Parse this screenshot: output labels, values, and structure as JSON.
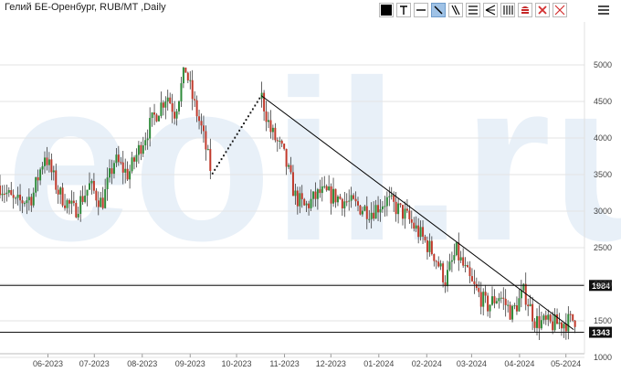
{
  "header": {
    "title": "Гелий БЕ-Оренбург, RUB/MT ,Daily"
  },
  "toolbar": {
    "tools": [
      {
        "name": "color-swatch-tool",
        "icon": "filled-square"
      },
      {
        "name": "text-tool",
        "icon": "T"
      },
      {
        "name": "horizontal-line-tool",
        "icon": "horizontal-line"
      },
      {
        "name": "trend-line-tool",
        "icon": "diagonal-line",
        "active": true
      },
      {
        "name": "ray-tool",
        "icon": "double-diagonal"
      },
      {
        "name": "channel-tool",
        "icon": "parallel-lines"
      },
      {
        "name": "fan-tool",
        "icon": "fan-lines"
      },
      {
        "name": "cycle-lines-tool",
        "icon": "vertical-bars"
      },
      {
        "name": "red-fill-tool",
        "icon": "red-stack"
      },
      {
        "name": "delete-tool",
        "icon": "red-x"
      },
      {
        "name": "delete-all-tool",
        "icon": "red-x-outline"
      }
    ],
    "menu_icon": "hamburger-icon"
  },
  "watermark": {
    "text": "eoil.ru",
    "color": "#e6eef7"
  },
  "colors": {
    "up": "#2e8b3a",
    "down": "#c0392b",
    "line": "#000000",
    "grid": "#e3e3e3"
  },
  "chart_data": {
    "type": "candlestick",
    "title": "Гелий БЕ-Оренбург, RUB/MT ,Daily",
    "x_labels": [
      "06-2023",
      "07-2023",
      "08-2023",
      "09-2023",
      "10-2023",
      "11-2023",
      "12-2023",
      "01-2024",
      "02-2024",
      "03-2024",
      "04-2024",
      "05-2024"
    ],
    "y_ticks": [
      1000,
      1500,
      2000,
      2500,
      3000,
      3500,
      4000,
      4500,
      5000
    ],
    "ylim": [
      950,
      5250
    ],
    "grid": true,
    "horizontal_levels": [
      {
        "value": 1984,
        "label": "1984"
      },
      {
        "value": 1343,
        "label": "1343"
      }
    ],
    "trend_line": {
      "from": {
        "date": "2023-10-31",
        "value": 4580
      },
      "to": {
        "date": "2024-05-20",
        "value": 1380
      }
    },
    "price_anchors": [
      [
        "2023-05-15",
        3350
      ],
      [
        "2023-05-25",
        3100
      ],
      [
        "2023-06-05",
        3200
      ],
      [
        "2023-06-13",
        3780
      ],
      [
        "2023-06-22",
        3250
      ],
      [
        "2023-07-02",
        3000
      ],
      [
        "2023-07-12",
        3350
      ],
      [
        "2023-07-20",
        3100
      ],
      [
        "2023-07-28",
        3700
      ],
      [
        "2023-08-06",
        3500
      ],
      [
        "2023-08-15",
        3950
      ],
      [
        "2023-08-23",
        4300
      ],
      [
        "2023-08-31",
        4600
      ],
      [
        "2023-09-05",
        4350
      ],
      [
        "2023-09-12",
        4950
      ],
      [
        "2023-09-17",
        4500
      ],
      [
        "2023-09-22",
        4150
      ],
      [
        "2023-09-29",
        3500
      ],
      [
        "2023-10-31",
        4580
      ],
      [
        "2023-11-06",
        4100
      ],
      [
        "2023-11-14",
        3800
      ],
      [
        "2023-11-22",
        3200
      ],
      [
        "2023-11-28",
        3050
      ],
      [
        "2023-12-08",
        3250
      ],
      [
        "2023-12-18",
        3200
      ],
      [
        "2023-12-28",
        3100
      ],
      [
        "2024-01-10",
        3000
      ],
      [
        "2024-01-20",
        3150
      ],
      [
        "2024-02-01",
        2950
      ],
      [
        "2024-02-10",
        2700
      ],
      [
        "2024-02-20",
        2400
      ],
      [
        "2024-02-27",
        2050
      ],
      [
        "2024-03-05",
        2450
      ],
      [
        "2024-03-15",
        2000
      ],
      [
        "2024-03-25",
        1700
      ],
      [
        "2024-04-02",
        1850
      ],
      [
        "2024-04-10",
        1600
      ],
      [
        "2024-04-18",
        1900
      ],
      [
        "2024-04-25",
        1500
      ],
      [
        "2024-05-05",
        1450
      ],
      [
        "2024-05-15",
        1480
      ],
      [
        "2024-05-22",
        1530
      ]
    ],
    "jump_gap": {
      "from": "2023-09-29",
      "to": "2023-10-31"
    }
  }
}
